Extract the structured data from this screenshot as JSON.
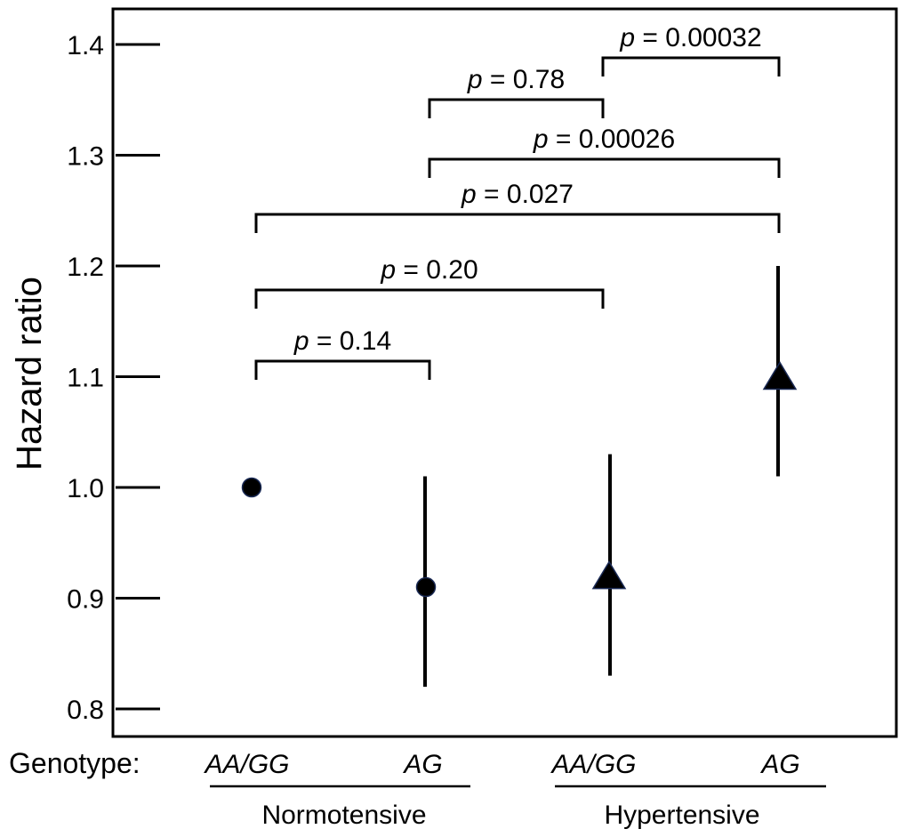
{
  "chart_data": {
    "type": "scatter",
    "title": "",
    "ylabel": "Hazard ratio",
    "ylim": [
      0.8,
      1.4
    ],
    "yticks": [
      "0.8",
      "0.9",
      "1.0",
      "1.1",
      "1.2",
      "1.3",
      "1.4"
    ],
    "genotype_label": "Genotype:",
    "groups": [
      {
        "label": "Normotensive",
        "marker": "circle"
      },
      {
        "label": "Hypertensive",
        "marker": "triangle"
      }
    ],
    "points": [
      {
        "genotype": "AA/GG",
        "group": "Normotensive",
        "marker": "circle",
        "hr": 1.0,
        "lower": null,
        "upper": null
      },
      {
        "genotype": "AG",
        "group": "Normotensive",
        "marker": "circle",
        "hr": 0.91,
        "lower": 0.82,
        "upper": 1.01
      },
      {
        "genotype": "AA/GG",
        "group": "Hypertensive",
        "marker": "triangle",
        "hr": 0.92,
        "lower": 0.83,
        "upper": 1.03
      },
      {
        "genotype": "AG",
        "group": "Hypertensive",
        "marker": "triangle",
        "hr": 1.1,
        "lower": 1.01,
        "upper": 1.2
      }
    ],
    "comparisons": [
      {
        "from": 0,
        "to": 1,
        "p_prefix": "p",
        "p_value": "= 0.14"
      },
      {
        "from": 0,
        "to": 2,
        "p_prefix": "p",
        "p_value": "= 0.20"
      },
      {
        "from": 0,
        "to": 3,
        "p_prefix": "p",
        "p_value": "= 0.027"
      },
      {
        "from": 1,
        "to": 3,
        "p_prefix": "p",
        "p_value": "= 0.00026"
      },
      {
        "from": 1,
        "to": 2,
        "p_prefix": "p",
        "p_value": "= 0.78"
      },
      {
        "from": 2,
        "to": 3,
        "p_prefix": "p",
        "p_value": "= 0.00032"
      }
    ],
    "grid": false,
    "legend": "none"
  }
}
